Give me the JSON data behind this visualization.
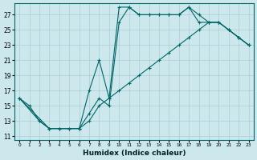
{
  "xlabel": "Humidex (Indice chaleur)",
  "bg_color": "#cce8ec",
  "grid_color": "#aacdd5",
  "line_color": "#006666",
  "xlim": [
    -0.5,
    23.5
  ],
  "ylim": [
    10.5,
    28.5
  ],
  "xticks": [
    0,
    1,
    2,
    3,
    4,
    5,
    6,
    7,
    8,
    9,
    10,
    11,
    12,
    13,
    14,
    15,
    16,
    17,
    18,
    19,
    20,
    21,
    22,
    23
  ],
  "yticks": [
    11,
    13,
    15,
    17,
    19,
    21,
    23,
    25,
    27
  ],
  "line1_x": [
    0,
    1,
    2,
    3,
    4,
    5,
    6,
    7,
    8,
    9,
    10,
    11,
    12,
    13,
    14,
    15,
    16,
    17,
    18,
    19,
    20,
    21,
    22,
    23
  ],
  "line1_y": [
    16,
    15,
    13,
    12,
    12,
    12,
    12,
    17,
    21,
    16,
    28,
    28,
    27,
    27,
    27,
    27,
    27,
    28,
    27,
    26,
    26,
    25,
    24,
    23
  ],
  "line2_x": [
    0,
    2,
    3,
    4,
    5,
    6,
    7,
    8,
    9,
    10,
    11,
    12,
    13,
    14,
    15,
    16,
    17,
    18,
    19,
    20,
    21,
    22,
    23
  ],
  "line2_y": [
    16,
    13,
    12,
    12,
    12,
    12,
    14,
    16,
    15,
    26,
    28,
    27,
    27,
    27,
    27,
    27,
    28,
    26,
    26,
    26,
    25,
    24,
    23
  ],
  "line3_x": [
    0,
    3,
    6,
    7,
    8,
    9,
    10,
    11,
    12,
    13,
    14,
    15,
    16,
    17,
    18,
    19,
    20,
    21,
    22,
    23
  ],
  "line3_y": [
    16,
    12,
    12,
    13,
    15,
    16,
    17,
    18,
    19,
    20,
    21,
    22,
    23,
    24,
    25,
    26,
    26,
    25,
    24,
    23
  ]
}
